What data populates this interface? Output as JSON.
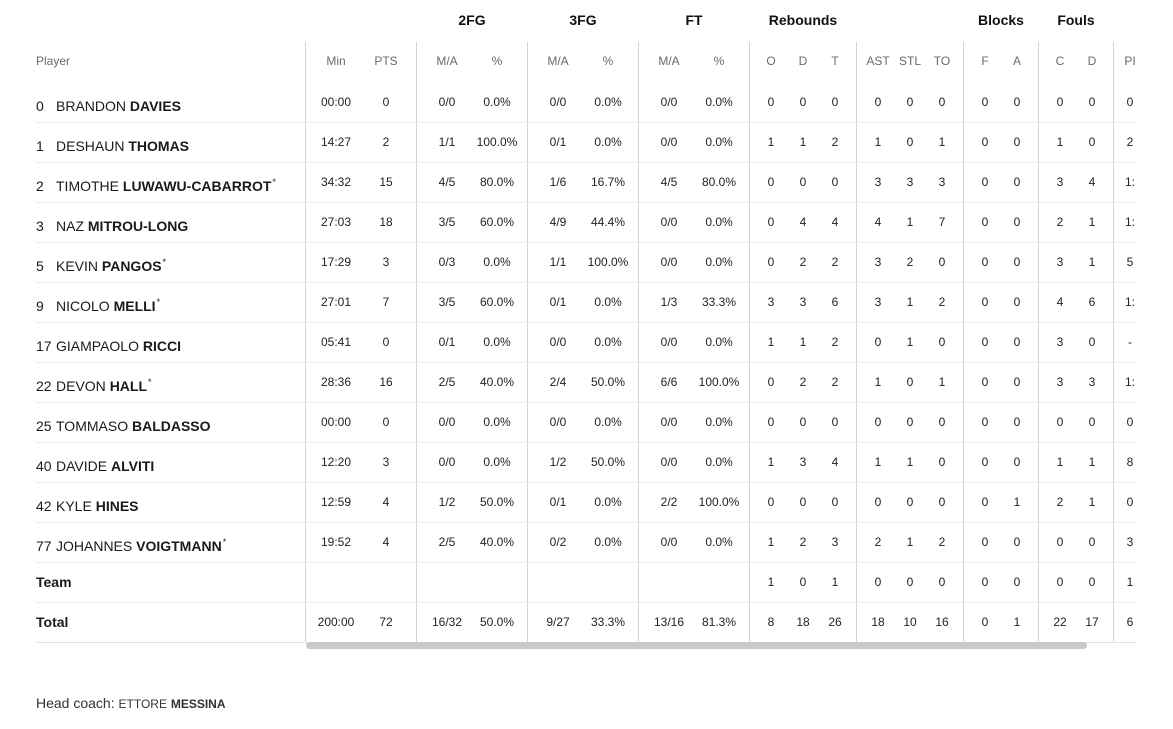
{
  "group_headers": {
    "fg2": "2FG",
    "fg3": "3FG",
    "ft": "FT",
    "reb": "Rebounds",
    "blk": "Blocks",
    "fouls": "Fouls"
  },
  "headers": {
    "player": "Player",
    "min": "Min",
    "pts": "PTS",
    "fg2_ma": "M/A",
    "fg2_pct": "%",
    "fg3_ma": "M/A",
    "fg3_pct": "%",
    "ft_ma": "M/A",
    "ft_pct": "%",
    "o": "O",
    "d": "D",
    "t": "T",
    "ast": "AST",
    "stl": "STL",
    "to": "TO",
    "f": "F",
    "a": "A",
    "c": "C",
    "fd": "D",
    "pir": "PI"
  },
  "players": [
    {
      "no": "0",
      "first": "BRANDON",
      "last": "DAVIES",
      "star": "",
      "min": "00:00",
      "pts": "0",
      "fg2": "0/0",
      "fg2p": "0.0%",
      "fg3": "0/0",
      "fg3p": "0.0%",
      "ft": "0/0",
      "ftp": "0.0%",
      "o": "0",
      "d": "0",
      "t": "0",
      "ast": "0",
      "stl": "0",
      "to": "0",
      "bf": "0",
      "ba": "0",
      "fc": "0",
      "fd": "0",
      "pir": "0"
    },
    {
      "no": "1",
      "first": "DESHAUN",
      "last": "THOMAS",
      "star": "",
      "min": "14:27",
      "pts": "2",
      "fg2": "1/1",
      "fg2p": "100.0%",
      "fg3": "0/1",
      "fg3p": "0.0%",
      "ft": "0/0",
      "ftp": "0.0%",
      "o": "1",
      "d": "1",
      "t": "2",
      "ast": "1",
      "stl": "0",
      "to": "1",
      "bf": "0",
      "ba": "0",
      "fc": "1",
      "fd": "0",
      "pir": "2"
    },
    {
      "no": "2",
      "first": "TIMOTHE",
      "last": "LUWAWU-CABARROT",
      "star": "*",
      "min": "34:32",
      "pts": "15",
      "fg2": "4/5",
      "fg2p": "80.0%",
      "fg3": "1/6",
      "fg3p": "16.7%",
      "ft": "4/5",
      "ftp": "80.0%",
      "o": "0",
      "d": "0",
      "t": "0",
      "ast": "3",
      "stl": "3",
      "to": "3",
      "bf": "0",
      "ba": "0",
      "fc": "3",
      "fd": "4",
      "pir": "1:"
    },
    {
      "no": "3",
      "first": "NAZ",
      "last": "MITROU-LONG",
      "star": "",
      "min": "27:03",
      "pts": "18",
      "fg2": "3/5",
      "fg2p": "60.0%",
      "fg3": "4/9",
      "fg3p": "44.4%",
      "ft": "0/0",
      "ftp": "0.0%",
      "o": "0",
      "d": "4",
      "t": "4",
      "ast": "4",
      "stl": "1",
      "to": "7",
      "bf": "0",
      "ba": "0",
      "fc": "2",
      "fd": "1",
      "pir": "1:"
    },
    {
      "no": "5",
      "first": "KEVIN",
      "last": "PANGOS",
      "star": "*",
      "min": "17:29",
      "pts": "3",
      "fg2": "0/3",
      "fg2p": "0.0%",
      "fg3": "1/1",
      "fg3p": "100.0%",
      "ft": "0/0",
      "ftp": "0.0%",
      "o": "0",
      "d": "2",
      "t": "2",
      "ast": "3",
      "stl": "2",
      "to": "0",
      "bf": "0",
      "ba": "0",
      "fc": "3",
      "fd": "1",
      "pir": "5"
    },
    {
      "no": "9",
      "first": "NICOLO",
      "last": "MELLI",
      "star": "*",
      "min": "27:01",
      "pts": "7",
      "fg2": "3/5",
      "fg2p": "60.0%",
      "fg3": "0/1",
      "fg3p": "0.0%",
      "ft": "1/3",
      "ftp": "33.3%",
      "o": "3",
      "d": "3",
      "t": "6",
      "ast": "3",
      "stl": "1",
      "to": "2",
      "bf": "0",
      "ba": "0",
      "fc": "4",
      "fd": "6",
      "pir": "1:"
    },
    {
      "no": "17",
      "first": "GIAMPAOLO",
      "last": "RICCI",
      "star": "",
      "min": "05:41",
      "pts": "0",
      "fg2": "0/1",
      "fg2p": "0.0%",
      "fg3": "0/0",
      "fg3p": "0.0%",
      "ft": "0/0",
      "ftp": "0.0%",
      "o": "1",
      "d": "1",
      "t": "2",
      "ast": "0",
      "stl": "1",
      "to": "0",
      "bf": "0",
      "ba": "0",
      "fc": "3",
      "fd": "0",
      "pir": "-"
    },
    {
      "no": "22",
      "first": "DEVON",
      "last": "HALL",
      "star": "*",
      "min": "28:36",
      "pts": "16",
      "fg2": "2/5",
      "fg2p": "40.0%",
      "fg3": "2/4",
      "fg3p": "50.0%",
      "ft": "6/6",
      "ftp": "100.0%",
      "o": "0",
      "d": "2",
      "t": "2",
      "ast": "1",
      "stl": "0",
      "to": "1",
      "bf": "0",
      "ba": "0",
      "fc": "3",
      "fd": "3",
      "pir": "1:"
    },
    {
      "no": "25",
      "first": "TOMMASO",
      "last": "BALDASSO",
      "star": "",
      "min": "00:00",
      "pts": "0",
      "fg2": "0/0",
      "fg2p": "0.0%",
      "fg3": "0/0",
      "fg3p": "0.0%",
      "ft": "0/0",
      "ftp": "0.0%",
      "o": "0",
      "d": "0",
      "t": "0",
      "ast": "0",
      "stl": "0",
      "to": "0",
      "bf": "0",
      "ba": "0",
      "fc": "0",
      "fd": "0",
      "pir": "0"
    },
    {
      "no": "40",
      "first": "DAVIDE",
      "last": "ALVITI",
      "star": "",
      "min": "12:20",
      "pts": "3",
      "fg2": "0/0",
      "fg2p": "0.0%",
      "fg3": "1/2",
      "fg3p": "50.0%",
      "ft": "0/0",
      "ftp": "0.0%",
      "o": "1",
      "d": "3",
      "t": "4",
      "ast": "1",
      "stl": "1",
      "to": "0",
      "bf": "0",
      "ba": "0",
      "fc": "1",
      "fd": "1",
      "pir": "8"
    },
    {
      "no": "42",
      "first": "KYLE",
      "last": "HINES",
      "star": "",
      "min": "12:59",
      "pts": "4",
      "fg2": "1/2",
      "fg2p": "50.0%",
      "fg3": "0/1",
      "fg3p": "0.0%",
      "ft": "2/2",
      "ftp": "100.0%",
      "o": "0",
      "d": "0",
      "t": "0",
      "ast": "0",
      "stl": "0",
      "to": "0",
      "bf": "0",
      "ba": "1",
      "fc": "2",
      "fd": "1",
      "pir": "0"
    },
    {
      "no": "77",
      "first": "JOHANNES",
      "last": "VOIGTMANN",
      "star": "*",
      "min": "19:52",
      "pts": "4",
      "fg2": "2/5",
      "fg2p": "40.0%",
      "fg3": "0/2",
      "fg3p": "0.0%",
      "ft": "0/0",
      "ftp": "0.0%",
      "o": "1",
      "d": "2",
      "t": "3",
      "ast": "2",
      "stl": "1",
      "to": "2",
      "bf": "0",
      "ba": "0",
      "fc": "0",
      "fd": "0",
      "pir": "3"
    }
  ],
  "team": {
    "label": "Team",
    "o": "1",
    "d": "0",
    "t": "1",
    "ast": "0",
    "stl": "0",
    "to": "0",
    "bf": "0",
    "ba": "0",
    "fc": "0",
    "fd": "0",
    "pir": "1"
  },
  "total": {
    "label": "Total",
    "min": "200:00",
    "pts": "72",
    "fg2": "16/32",
    "fg2p": "50.0%",
    "fg3": "9/27",
    "fg3p": "33.3%",
    "ft": "13/16",
    "ftp": "81.3%",
    "o": "8",
    "d": "18",
    "t": "26",
    "ast": "18",
    "stl": "10",
    "to": "16",
    "bf": "0",
    "ba": "1",
    "fc": "22",
    "fd": "17",
    "pir": "6"
  },
  "coach": {
    "label": "Head coach:",
    "first": "ETTORE",
    "last": "MESSINA"
  }
}
